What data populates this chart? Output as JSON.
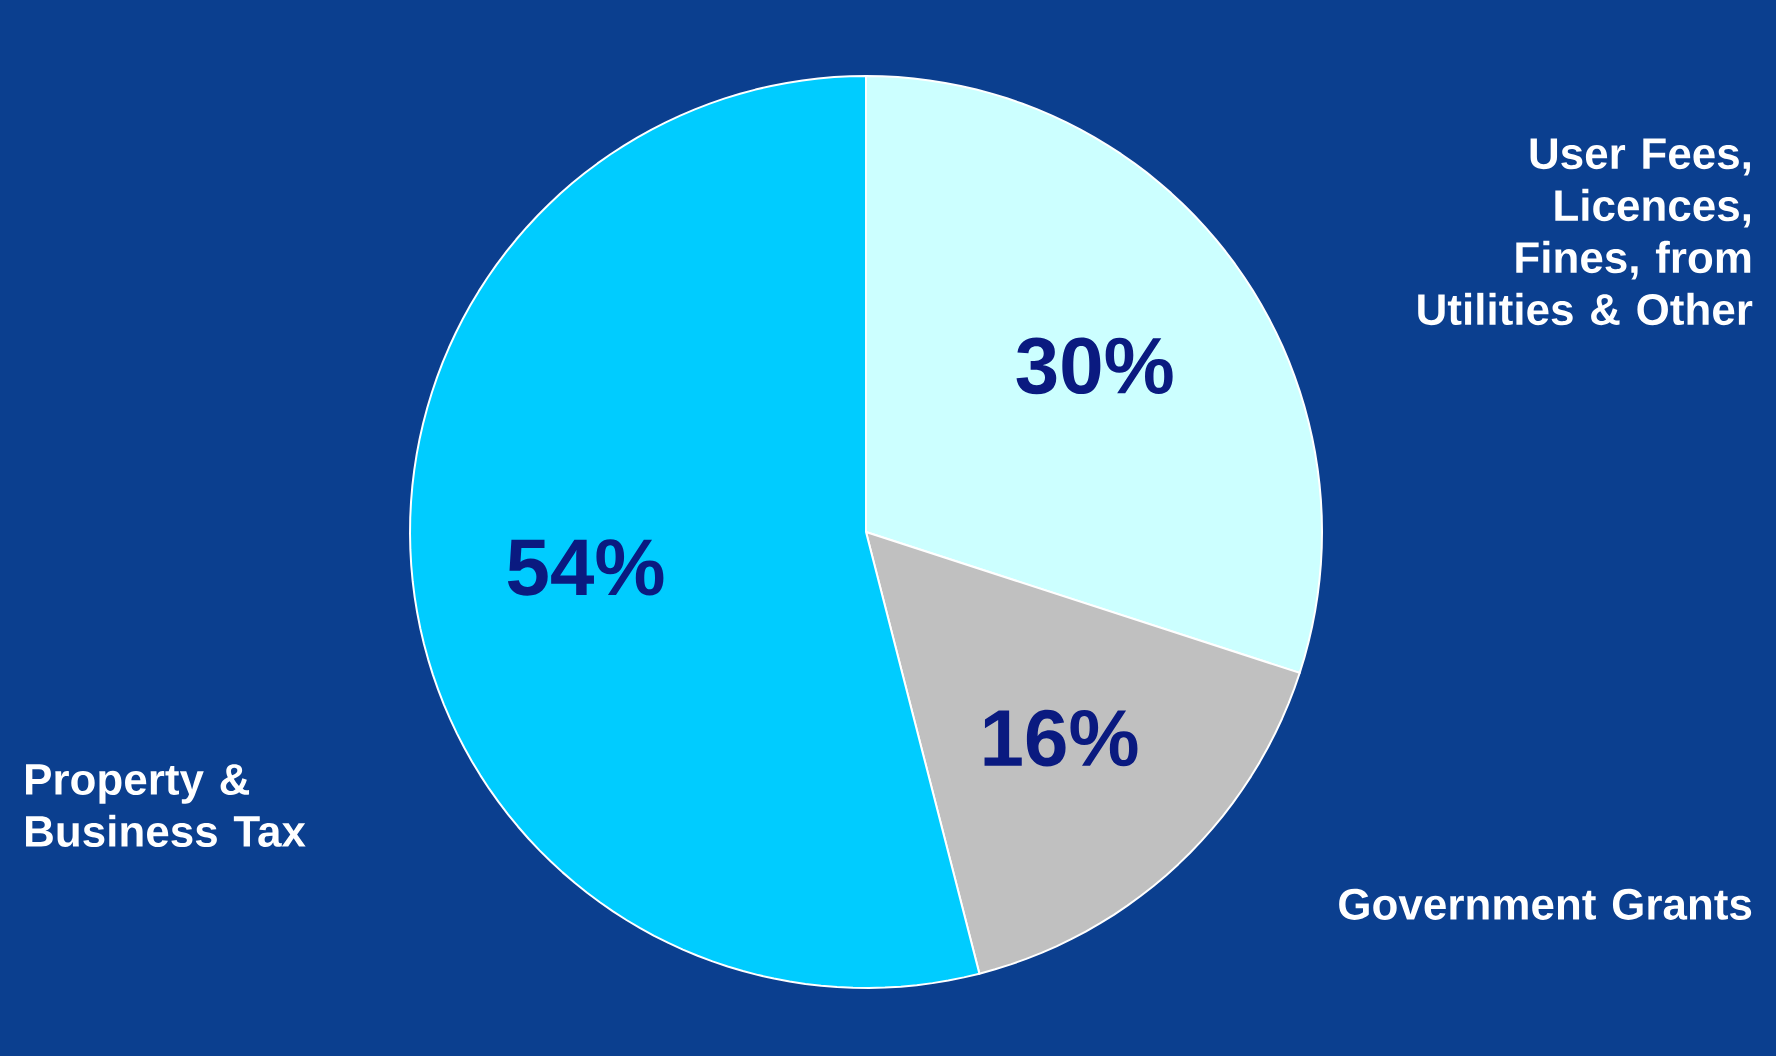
{
  "chart_data": {
    "type": "pie",
    "categories": [
      "User Fees, Licences, Fines, from Utilities & Other",
      "Government Grants",
      "Property & Business Tax"
    ],
    "values": [
      30,
      16,
      54
    ],
    "value_labels": [
      "30%",
      "16%",
      "54%"
    ],
    "colors": [
      "#ccffff",
      "#c0c0c0",
      "#00ccff"
    ]
  }
}
